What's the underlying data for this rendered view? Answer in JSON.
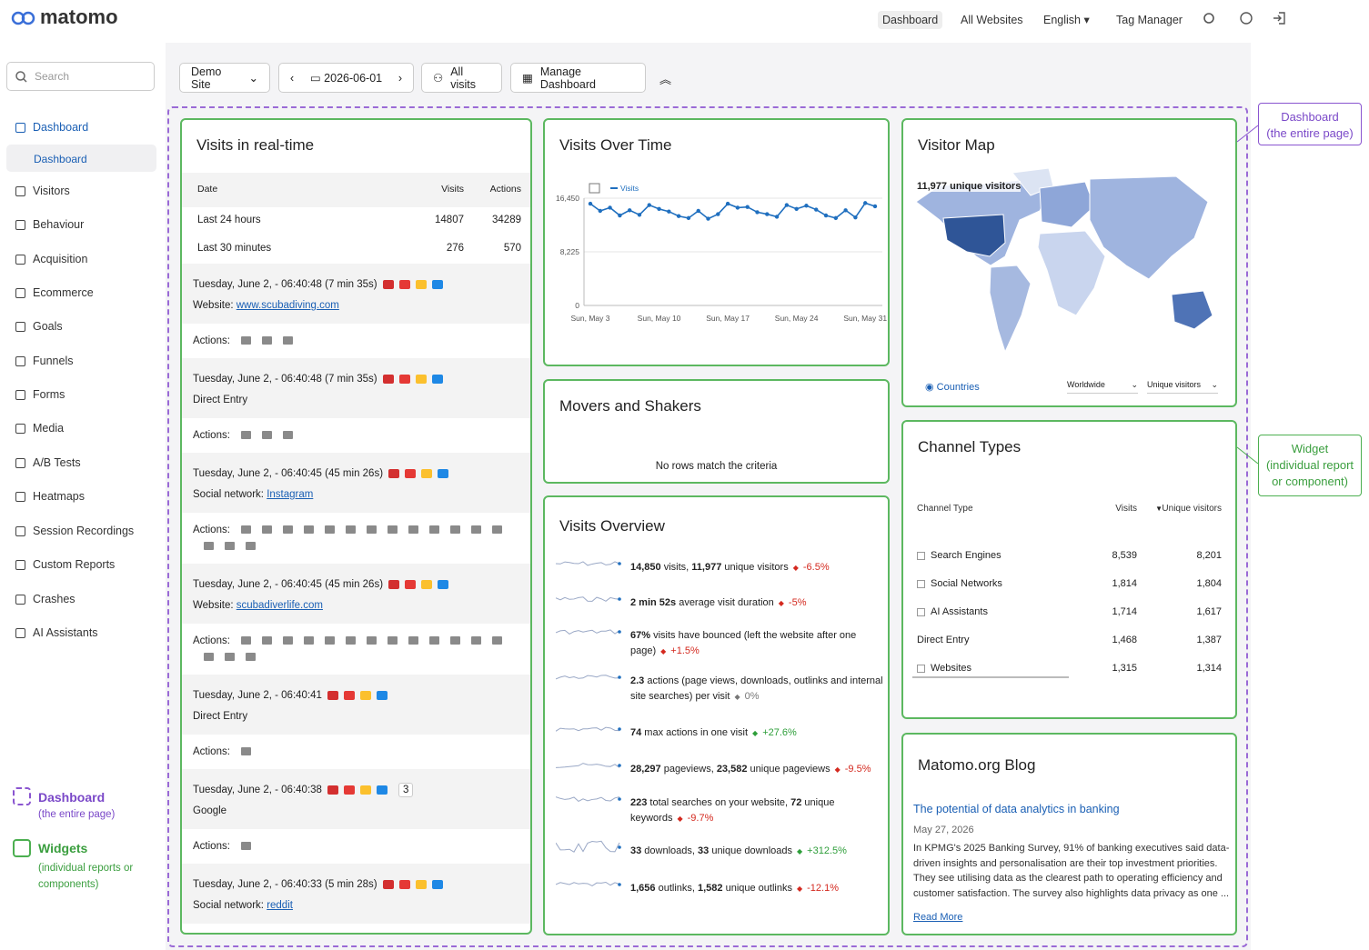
{
  "header": {
    "logo": "matomo",
    "nav": [
      "Dashboard",
      "All Websites",
      "English",
      "Tag Manager"
    ]
  },
  "sidebar": {
    "search": "Search",
    "menu": [
      "Dashboard",
      "Visitors",
      "Behaviour",
      "Acquisition",
      "Ecommerce",
      "Goals",
      "Funnels",
      "Forms",
      "Media",
      "A/B Tests",
      "Heatmaps",
      "Session Recordings",
      "Custom Reports",
      "Crashes",
      "AI Assistants"
    ],
    "submenu": "Dashboard",
    "legend": [
      {
        "title": "Dashboard",
        "sub": "(the entire page)"
      },
      {
        "title": "Widgets",
        "sub": "(individual reports or components)"
      }
    ]
  },
  "toolbar": {
    "site": "Demo Site",
    "date": "2026-06-01",
    "segment": "All visits",
    "manage": "Manage Dashboard"
  },
  "callouts": [
    {
      "title": "Dashboard",
      "sub": "(the entire page)"
    },
    {
      "title": "Widget",
      "sub": "(individual report or component)"
    }
  ],
  "widgets": {
    "realtime": {
      "title": "Visits in real-time",
      "columns": [
        "Date",
        "Visits",
        "Actions"
      ],
      "rows": [
        [
          "Last 24 hours",
          14807,
          34289
        ],
        [
          "Last 30 minutes",
          276,
          570
        ]
      ],
      "actions_label": "Actions:",
      "visits": [
        {
          "time": "Tuesday, June 2, - 06:40:48 (7 min 35s)",
          "source_label": "Website:",
          "source": "www.scubadiving.com"
        },
        {
          "time": "Tuesday, June 2, - 06:40:48 (7 min 35s)",
          "source_label": "Direct Entry"
        },
        {
          "time": "Tuesday, June 2, - 06:40:45 (45 min 26s)",
          "source_label": "Social network:",
          "source": "Instagram"
        },
        {
          "time": "Tuesday, June 2, - 06:40:45 (45 min 26s)",
          "source_label": "Website:",
          "source": "scubadiverlife.com"
        },
        {
          "time": "Tuesday, June 2, - 06:40:41",
          "source_label": "Direct Entry"
        },
        {
          "time": "Tuesday, June 2, - 06:40:38",
          "source_label": "Google",
          "badge": "3"
        },
        {
          "time": "Tuesday, June 2, - 06:40:33 (5 min 28s)",
          "source_label": "Social network:",
          "source": "reddit"
        }
      ]
    },
    "visits_over_time": {
      "type": "line",
      "title": "Visits Over Time",
      "legend": "Visits",
      "color": "#1f6fbf",
      "categories": [
        "Sun, May 3",
        null,
        null,
        null,
        null,
        null,
        null,
        "Sun, May 10",
        null,
        null,
        null,
        null,
        null,
        null,
        "Sun, May 17",
        null,
        null,
        null,
        null,
        null,
        null,
        "Sun, May 24",
        null,
        null,
        null,
        null,
        null,
        null,
        "Sun, May 31",
        null
      ],
      "values": [
        15600,
        14500,
        15000,
        13800,
        14600,
        13900,
        15400,
        14800,
        14400,
        13700,
        13400,
        14500,
        13300,
        14000,
        15600,
        15000,
        15100,
        14300,
        14000,
        13600,
        15400,
        14800,
        15300,
        14700,
        13800,
        13400,
        14600,
        13500,
        15700,
        15200
      ],
      "ylim": [
        0,
        16450
      ],
      "yticks": [
        0,
        {
          "value": 8225,
          "label": "8,225"
        },
        {
          "value": 16450,
          "label": "16,450"
        }
      ]
    },
    "visitor_map": {
      "title": "Visitor Map",
      "summary": "11,977 unique visitors",
      "tab": "Countries",
      "region": "Worldwide",
      "metric": "Unique visitors"
    },
    "movers": {
      "title": "Movers and Shakers",
      "empty": "No rows match the criteria"
    },
    "visits_overview": {
      "title": "Visits Overview",
      "items": [
        {
          "parts": [
            "14,850",
            " visits, ",
            "11,977",
            " unique visitors"
          ],
          "change": "-6.5%",
          "color": "#d4291f"
        },
        {
          "parts": [
            "2 min 52s",
            " average visit duration"
          ],
          "change": "-5%",
          "color": "#d4291f"
        },
        {
          "parts": [
            "67%",
            " visits have bounced (left the website after one page)"
          ],
          "change": "+1.5%",
          "color": "#d4291f"
        },
        {
          "parts": [
            "2.3",
            " actions (page views, downloads, outlinks and internal site searches) per visit"
          ],
          "change": "0%",
          "color": "#777777"
        },
        {
          "parts": [
            "74",
            " max actions in one visit"
          ],
          "change": "+27.6%",
          "color": "#2e9e3a"
        },
        {
          "parts": [
            "28,297",
            " pageviews, ",
            "23,582",
            " unique pageviews"
          ],
          "change": "-9.5%",
          "color": "#d4291f"
        },
        {
          "parts": [
            "223",
            " total searches on your website, ",
            "72",
            " unique keywords"
          ],
          "change": "-9.7%",
          "color": "#d4291f"
        },
        {
          "parts": [
            "33",
            " downloads, ",
            "33",
            " unique downloads"
          ],
          "change": "+312.5%",
          "color": "#2e9e3a"
        },
        {
          "parts": [
            "1,656",
            " outlinks, ",
            "1,582",
            " unique outlinks"
          ],
          "change": "-12.1%",
          "color": "#d4291f"
        }
      ]
    },
    "channel_types": {
      "title": "Channel Types",
      "columns": [
        "Channel Type",
        "Visits",
        "Unique visitors"
      ],
      "rows": [
        [
          "Search Engines",
          "8,539",
          "8,201"
        ],
        [
          "Social Networks",
          "1,814",
          "1,804"
        ],
        [
          "AI Assistants",
          "1,714",
          "1,617"
        ],
        [
          "Direct Entry",
          "1,468",
          "1,387"
        ],
        [
          "Websites",
          "1,315",
          "1,314"
        ]
      ]
    },
    "blog": {
      "title": "Matomo.org Blog",
      "post_title": "The potential of data analytics in banking",
      "date": "May 27, 2026",
      "body": "In KPMG's 2025 Banking Survey, 91% of banking executives said data-driven insights and personalisation are their top investment priorities. They see utilising data as the clearest path to operating efficiency and customer satisfaction. The survey also highlights data privacy as one ...",
      "read_more": "Read More"
    }
  }
}
